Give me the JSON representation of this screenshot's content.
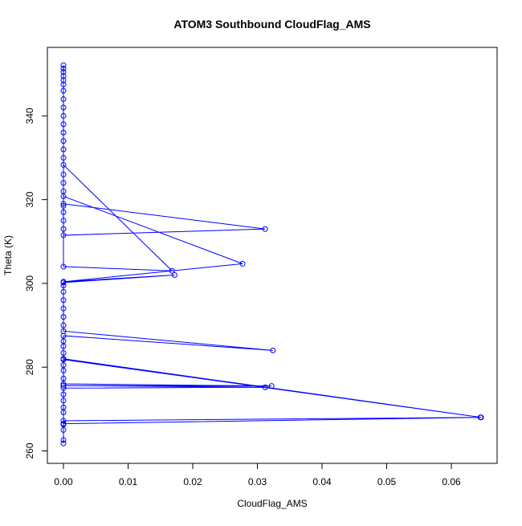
{
  "chart_data": {
    "type": "line",
    "title": "ATOM3 Southbound CloudFlag_AMS",
    "xlabel": "CloudFlag_AMS",
    "ylabel": "Theta (K)",
    "xlim": [
      0,
      0.065
    ],
    "ylim": [
      260,
      352
    ],
    "x_ticks": [
      0.0,
      0.01,
      0.02,
      0.03,
      0.04,
      0.05,
      0.06
    ],
    "x_tick_labels": [
      "0.00",
      "0.01",
      "0.02",
      "0.03",
      "0.04",
      "0.05",
      "0.06"
    ],
    "y_ticks": [
      260,
      280,
      300,
      320,
      340
    ],
    "y_tick_labels": [
      "260",
      "280",
      "300",
      "320",
      "340"
    ],
    "grid": false,
    "series_color": "#0000ff",
    "series": [
      {
        "marker": "open-circle",
        "points": [
          [
            0,
            261.8
          ],
          [
            0,
            262.6
          ],
          [
            0,
            265.0
          ],
          [
            0,
            266.3
          ],
          [
            0,
            267.2
          ],
          [
            0.0645,
            268.0
          ],
          [
            0,
            266.5
          ],
          [
            0,
            269.2
          ],
          [
            0,
            270.4
          ],
          [
            0,
            272.0
          ],
          [
            0,
            273.5
          ],
          [
            0,
            275.0
          ],
          [
            0.0312,
            275.2
          ],
          [
            0,
            275.6
          ],
          [
            0.0322,
            275.5
          ],
          [
            0,
            276.0
          ],
          [
            0,
            277.3
          ],
          [
            0,
            279.2
          ],
          [
            0,
            280.5
          ],
          [
            0,
            281.8
          ],
          [
            0.0646,
            268.0
          ],
          [
            0,
            282.0
          ],
          [
            0,
            283.4
          ],
          [
            0,
            285.0
          ],
          [
            0,
            286.2
          ],
          [
            0,
            287.5
          ],
          [
            0.0324,
            284.0
          ],
          [
            0,
            288.6
          ],
          [
            0,
            290.0
          ],
          [
            0,
            292.0
          ],
          [
            0,
            294.0
          ],
          [
            0,
            296.0
          ],
          [
            0,
            298.0
          ],
          [
            0,
            299.5
          ],
          [
            0,
            300.2
          ],
          [
            0.0172,
            302.0
          ],
          [
            0,
            300.4
          ],
          [
            0.0277,
            304.7
          ],
          [
            0,
            320.8
          ],
          [
            0,
            319.0
          ],
          [
            0.0312,
            313.0
          ],
          [
            0,
            311.5
          ],
          [
            0,
            313.0
          ],
          [
            0,
            315.0
          ],
          [
            0,
            317.0
          ],
          [
            0,
            318.5
          ],
          [
            0,
            328.3
          ],
          [
            0.0168,
            303.0
          ],
          [
            0,
            304.0
          ],
          [
            0,
            322.0
          ],
          [
            0,
            324.0
          ],
          [
            0,
            326.0
          ],
          [
            0,
            330.0
          ],
          [
            0,
            332.0
          ],
          [
            0,
            334.0
          ],
          [
            0,
            336.0
          ],
          [
            0,
            338.0
          ],
          [
            0,
            340.0
          ],
          [
            0,
            342.0
          ],
          [
            0,
            344.0
          ],
          [
            0,
            346.0
          ],
          [
            0,
            347.5
          ],
          [
            0,
            348.5
          ],
          [
            0,
            349.5
          ],
          [
            0,
            350.5
          ],
          [
            0,
            351.3
          ],
          [
            0,
            352.1
          ]
        ]
      }
    ]
  }
}
